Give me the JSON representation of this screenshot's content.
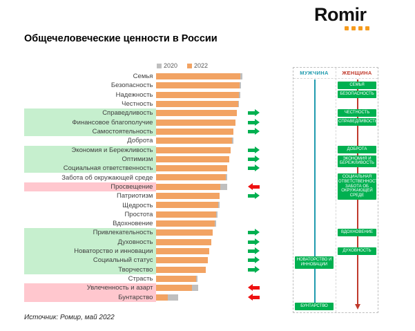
{
  "logo": {
    "text": "Romir",
    "dot_color": "#F59B1E"
  },
  "title": "Общечеловеческие ценности в России",
  "legend": {
    "items": [
      {
        "label": "2020",
        "color": "#BFBFBF"
      },
      {
        "label": "2022",
        "color": "#F2A363"
      }
    ]
  },
  "source": "Источник: Ромир, май 2022",
  "chart_data": {
    "type": "bar",
    "orientation": "horizontal",
    "title": "Общечеловеческие ценности в России",
    "series_names": [
      "2020",
      "2022"
    ],
    "colors": {
      "2020": "#BFBFBF",
      "2022": "#F2A363",
      "highlight_green": "#C6EFCE",
      "highlight_pink": "#FFC7CE",
      "arrow_up": "#00B050",
      "arrow_down": "#EE1111"
    },
    "note": "no numeric axis shown; values estimated as % of longest bar",
    "xlim": [
      0,
      100
    ],
    "rows": [
      {
        "label": "Семья",
        "v2020": 99,
        "v2022": 97,
        "highlight": "none",
        "arrow": "none"
      },
      {
        "label": "Безопасность",
        "v2020": 97.5,
        "v2022": 96,
        "highlight": "none",
        "arrow": "none"
      },
      {
        "label": "Надежность",
        "v2020": 96.5,
        "v2022": 95,
        "highlight": "none",
        "arrow": "none"
      },
      {
        "label": "Честность",
        "v2020": 95.5,
        "v2022": 94,
        "highlight": "none",
        "arrow": "none"
      },
      {
        "label": "Справедливость",
        "v2020": 87,
        "v2022": 93,
        "highlight": "green",
        "arrow": "up"
      },
      {
        "label": "Финансовое благополучие",
        "v2020": 84,
        "v2022": 91,
        "highlight": "green",
        "arrow": "up"
      },
      {
        "label": "Самостоятельность",
        "v2020": 83,
        "v2022": 89,
        "highlight": "green",
        "arrow": "up"
      },
      {
        "label": "Доброта",
        "v2020": 88.5,
        "v2022": 87,
        "highlight": "none",
        "arrow": "none"
      },
      {
        "label": "Экономия и Бережливость",
        "v2020": 79,
        "v2022": 86,
        "highlight": "green",
        "arrow": "up"
      },
      {
        "label": "Оптимизм",
        "v2020": 77,
        "v2022": 84,
        "highlight": "green",
        "arrow": "up"
      },
      {
        "label": "Социальная ответственность",
        "v2020": 75,
        "v2022": 82,
        "highlight": "green",
        "arrow": "up"
      },
      {
        "label": "Забота об окружающей среде",
        "v2020": 81.5,
        "v2022": 80,
        "highlight": "none",
        "arrow": "none"
      },
      {
        "label": "Просвещение",
        "v2020": 82,
        "v2022": 74,
        "highlight": "pink",
        "arrow": "down"
      },
      {
        "label": "Патриотизм",
        "v2020": 66,
        "v2022": 73,
        "highlight": "none",
        "arrow": "up"
      },
      {
        "label": "Щедрость",
        "v2020": 72.5,
        "v2022": 71,
        "highlight": "none",
        "arrow": "none"
      },
      {
        "label": "Простота",
        "v2020": 70.5,
        "v2022": 69,
        "highlight": "none",
        "arrow": "none"
      },
      {
        "label": "Вдохновение",
        "v2020": 68.5,
        "v2022": 67,
        "highlight": "none",
        "arrow": "none"
      },
      {
        "label": "Привлекательность",
        "v2020": 58,
        "v2022": 65,
        "highlight": "green",
        "arrow": "up"
      },
      {
        "label": "Духовность",
        "v2020": 56,
        "v2022": 63,
        "highlight": "green",
        "arrow": "up"
      },
      {
        "label": "Новаторство и инновации",
        "v2020": 54,
        "v2022": 61,
        "highlight": "green",
        "arrow": "up"
      },
      {
        "label": "Социальный статус",
        "v2020": 52,
        "v2022": 59,
        "highlight": "green",
        "arrow": "up"
      },
      {
        "label": "Творчество",
        "v2020": 50,
        "v2022": 57,
        "highlight": "green",
        "arrow": "up"
      },
      {
        "label": "Страсть",
        "v2020": 47.5,
        "v2022": 46,
        "highlight": "none",
        "arrow": "none"
      },
      {
        "label": "Увлеченность и азарт",
        "v2020": 48,
        "v2022": 41,
        "highlight": "pink",
        "arrow": "down"
      },
      {
        "label": "Бунтарство",
        "v2020": 25,
        "v2022": 13,
        "highlight": "pink",
        "arrow": "down"
      }
    ]
  },
  "gender_panel": {
    "male_label": "МУЖЧИНА",
    "female_label": "ЖЕНЩИНА",
    "male_color": "#1F9AAE",
    "female_color": "#C0392B",
    "box_color": "#00B050",
    "female_items": [
      {
        "label": "СЕМЬЯ",
        "row_index": 0
      },
      {
        "label": "БЕЗОПАСНОСТЬ",
        "row_index": 1
      },
      {
        "label": "ЧЕСТНОСТЬ",
        "row_index": 3
      },
      {
        "label": "СПРАВЕДЛИВОСТЬ",
        "row_index": 4
      },
      {
        "label": "ДОБРОТА",
        "row_index": 7
      },
      {
        "label": "ЭКОНОМИЯ И БЕРЕЖЛИВОСТЬ",
        "row_index": 8
      },
      {
        "label": "СОЦИАЛЬНАЯ ОТВЕТСТВЕННОСТЬ",
        "row_index": 10
      },
      {
        "label": "ЗАБОТА ОБ ОКРУЖАЮЩЕЙ СРЕДЕ",
        "row_index": 11
      },
      {
        "label": "ВДОХНОВЕНИЕ",
        "row_index": 16
      },
      {
        "label": "ДУХОВНОСТЬ",
        "row_index": 18
      }
    ],
    "male_items": [
      {
        "label": "НОВАТОРСТВО И ИННОВАЦИИ",
        "row_index": 19
      },
      {
        "label": "БУНТАРСТВО",
        "row_index": 24
      }
    ]
  }
}
